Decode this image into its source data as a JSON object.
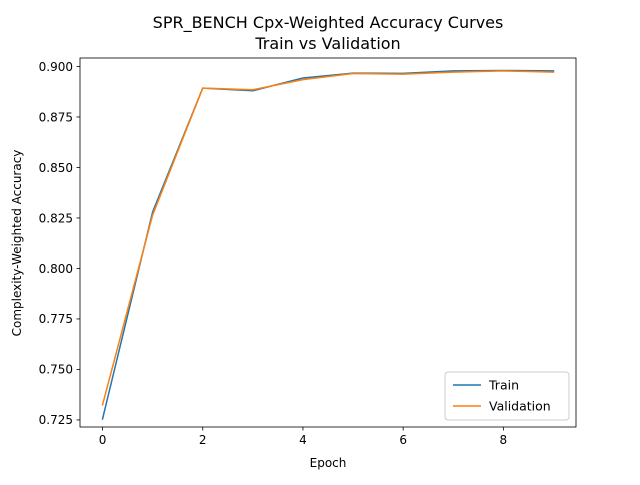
{
  "chart_data": {
    "type": "line",
    "title": "SPR_BENCH Cpx-Weighted Accuracy Curves",
    "subtitle": "Train vs Validation",
    "xlabel": "Epoch",
    "ylabel": "Complexity-Weighted Accuracy",
    "x": [
      0,
      1,
      2,
      3,
      4,
      5,
      6,
      7,
      8,
      9
    ],
    "xlim": [
      -0.45,
      9.45
    ],
    "ylim": [
      0.7215,
      0.9042
    ],
    "xticks": [
      0,
      2,
      4,
      6,
      8
    ],
    "yticks": [
      0.725,
      0.75,
      0.775,
      0.8,
      0.825,
      0.85,
      0.875,
      0.9
    ],
    "grid": false,
    "legend_position": "lower right",
    "series": [
      {
        "name": "Train",
        "color": "#1f77b4",
        "values": [
          0.7255,
          0.828,
          0.8893,
          0.888,
          0.8943,
          0.8967,
          0.8966,
          0.8978,
          0.898,
          0.8978
        ]
      },
      {
        "name": "Validation",
        "color": "#ff7f0e",
        "values": [
          0.7325,
          0.8265,
          0.8893,
          0.8885,
          0.8935,
          0.8965,
          0.8962,
          0.8972,
          0.8978,
          0.8972
        ]
      }
    ]
  }
}
